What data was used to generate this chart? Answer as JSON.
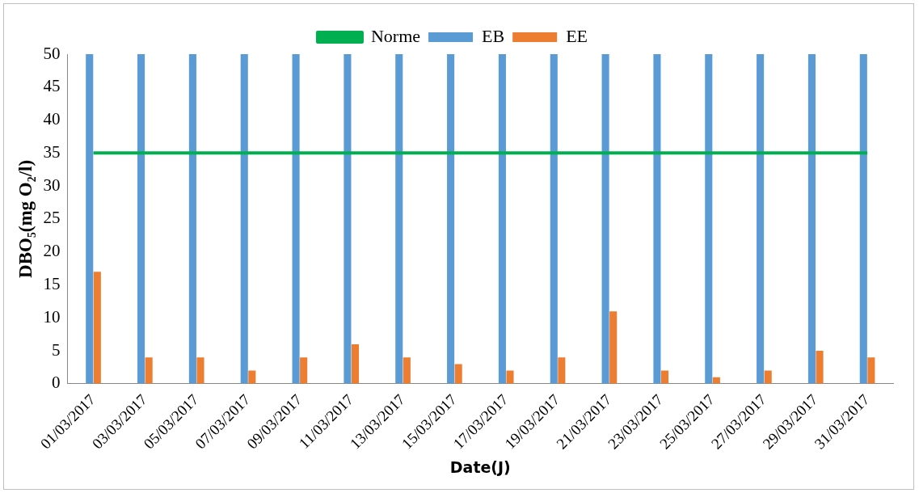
{
  "chart_data": {
    "type": "bar",
    "xlabel": "Date(J)",
    "ylabel": "DBO₅(mg O₂/l)",
    "categories": [
      "01/03/2017",
      "03/03/2017",
      "05/03/2017",
      "07/03/2017",
      "09/03/2017",
      "11/03/2017",
      "13/03/2017",
      "15/03/2017",
      "17/03/2017",
      "19/03/2017",
      "21/03/2017",
      "23/03/2017",
      "25/03/2017",
      "27/03/2017",
      "29/03/2017",
      "31/03/2017"
    ],
    "series": [
      {
        "name": "EB",
        "color": "#5b9bd5",
        "values": [
          50,
          50,
          50,
          50,
          50,
          50,
          50,
          50,
          50,
          50,
          50,
          50,
          50,
          50,
          50,
          50
        ]
      },
      {
        "name": "EE",
        "color": "#ed7d31",
        "values": [
          17,
          4,
          4,
          2,
          4,
          6,
          4,
          3,
          2,
          4,
          11,
          2,
          1,
          2,
          5,
          4
        ]
      },
      {
        "name": "Norme",
        "type": "line",
        "color": "#00b050",
        "values": [
          35,
          35,
          35,
          35,
          35,
          35,
          35,
          35,
          35,
          35,
          35,
          35,
          35,
          35,
          35,
          35
        ]
      }
    ],
    "ylim": [
      0,
      50
    ],
    "yticks": [
      0,
      5,
      10,
      15,
      20,
      25,
      30,
      35,
      40,
      45,
      50
    ],
    "grid": false,
    "legend": "top",
    "marker": "none"
  }
}
